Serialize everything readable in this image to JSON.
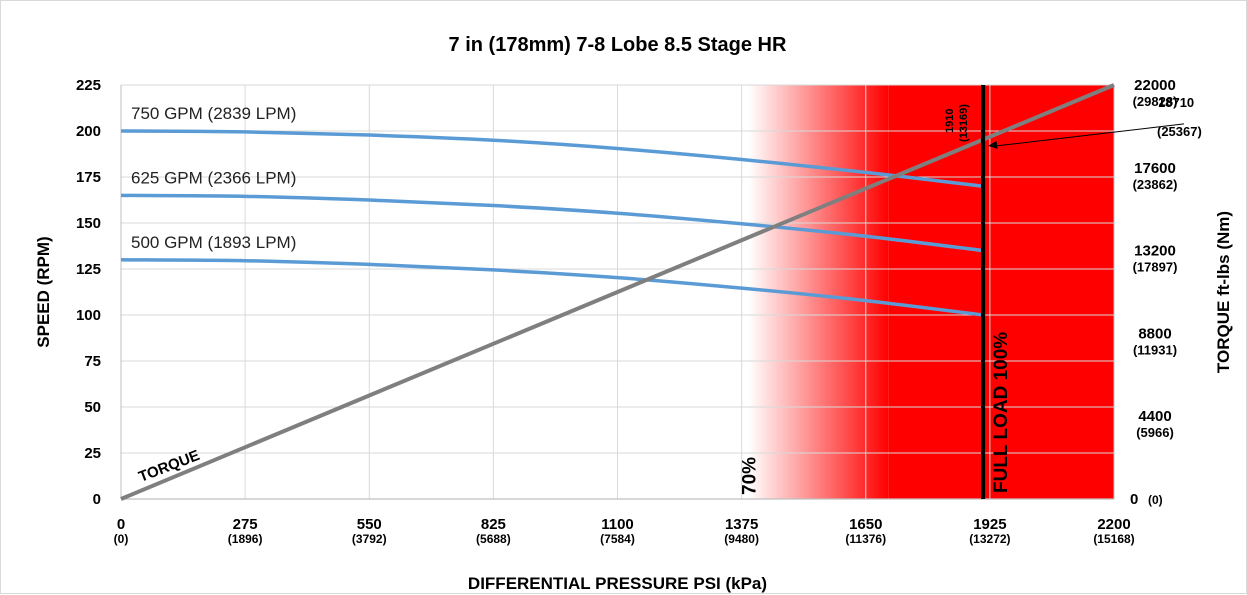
{
  "chart_data": {
    "type": "line",
    "title": "7 in (178mm) 7-8 Lobe 8.5 Stage HR",
    "xlabel": "DIFFERENTIAL PRESSURE PSI (kPa)",
    "ylabel_left": "SPEED (RPM)",
    "ylabel_right": "TORQUE ft-lbs (Nm)",
    "xlim": [
      0,
      2200
    ],
    "ylim_left": [
      0,
      225
    ],
    "ylim_right": [
      0,
      22000
    ],
    "x_ticks": [
      {
        "value": 0,
        "label": "0",
        "sub": "(0)"
      },
      {
        "value": 275,
        "label": "275",
        "sub": "(1896)"
      },
      {
        "value": 550,
        "label": "550",
        "sub": "(3792)"
      },
      {
        "value": 825,
        "label": "825",
        "sub": "(5688)"
      },
      {
        "value": 1100,
        "label": "1100",
        "sub": "(7584)"
      },
      {
        "value": 1375,
        "label": "1375",
        "sub": "(9480)"
      },
      {
        "value": 1650,
        "label": "1650",
        "sub": "(11376)"
      },
      {
        "value": 1925,
        "label": "1925",
        "sub": "(13272)"
      },
      {
        "value": 2200,
        "label": "2200",
        "sub": "(15168)"
      }
    ],
    "y_ticks_left": [
      "0",
      "25",
      "50",
      "75",
      "100",
      "125",
      "150",
      "175",
      "200",
      "225"
    ],
    "y_ticks_right": [
      {
        "value": 0,
        "label": "0",
        "sub": "(0)"
      },
      {
        "value": 4400,
        "label": "4400",
        "sub": "(5966)"
      },
      {
        "value": 8800,
        "label": "8800",
        "sub": "(11931)"
      },
      {
        "value": 13200,
        "label": "13200",
        "sub": "(17897)"
      },
      {
        "value": 17600,
        "label": "17600",
        "sub": "(23862)"
      },
      {
        "value": 22000,
        "label": "22000",
        "sub": "(29828)"
      }
    ],
    "series": [
      {
        "name": "750 GPM (2839 LPM)",
        "axis": "left",
        "color": "#5b9bd5",
        "x": [
          0,
          275,
          550,
          825,
          1100,
          1375,
          1650,
          1910
        ],
        "y": [
          200,
          199.5,
          197.8,
          195,
          190.5,
          184.5,
          177.5,
          170
        ]
      },
      {
        "name": "625 GPM (2366 LPM)",
        "axis": "left",
        "color": "#5b9bd5",
        "x": [
          0,
          275,
          550,
          825,
          1100,
          1375,
          1650,
          1910
        ],
        "y": [
          165,
          164.5,
          162.5,
          159.5,
          155.3,
          149.6,
          142.8,
          135
        ]
      },
      {
        "name": "500 GPM (1893 LPM)",
        "axis": "left",
        "color": "#5b9bd5",
        "x": [
          0,
          275,
          550,
          825,
          1100,
          1375,
          1650,
          1910
        ],
        "y": [
          130,
          129.5,
          127.5,
          124.5,
          120.3,
          114.6,
          107.8,
          100
        ]
      },
      {
        "name": "TORQUE",
        "axis": "right",
        "color": "#7f7f7f",
        "x": [
          0,
          2200
        ],
        "y": [
          0,
          22000
        ]
      }
    ],
    "zones": {
      "gradient_start_x": 1390,
      "solid_start_x": 1700,
      "end_x": 2200,
      "color": "#ff0000",
      "label_70": "70%"
    },
    "full_load": {
      "x": 1910,
      "label": "FULL LOAD 100%",
      "top_label": "1910",
      "top_sub": "(13169)"
    },
    "annotation": {
      "x": 1910,
      "torque": 18710,
      "label": "18710",
      "sub": "(25367)"
    },
    "grid": true,
    "colors": {
      "gridline": "#d9d9d9",
      "axis": "#bfbfbf",
      "fullload": "#000000"
    }
  }
}
